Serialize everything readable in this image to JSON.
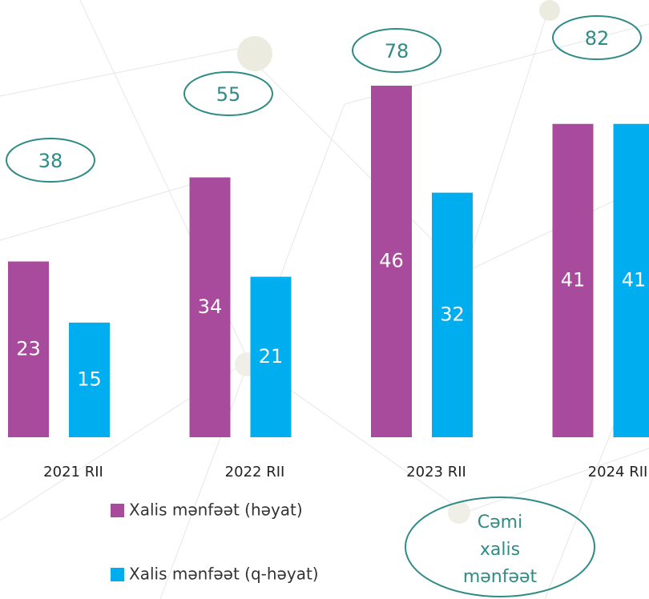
{
  "chart_data": {
    "type": "bar",
    "categories": [
      "2021 RII",
      "2022 RII",
      "2023 RII",
      "2024 RII"
    ],
    "series": [
      {
        "name": "Xalis mənfəət (həyat)",
        "color": "#a94b9d",
        "values": [
          23,
          34,
          46,
          41
        ]
      },
      {
        "name": "Xalis mənfəət (q-həyat)",
        "color": "#00aeef",
        "values": [
          15,
          21,
          32,
          41
        ]
      }
    ],
    "totals": {
      "name": [
        "Cəmi",
        "xalis",
        "mənfəət"
      ],
      "color": "#2e8b85",
      "values": [
        38,
        55,
        78,
        82
      ]
    }
  }
}
